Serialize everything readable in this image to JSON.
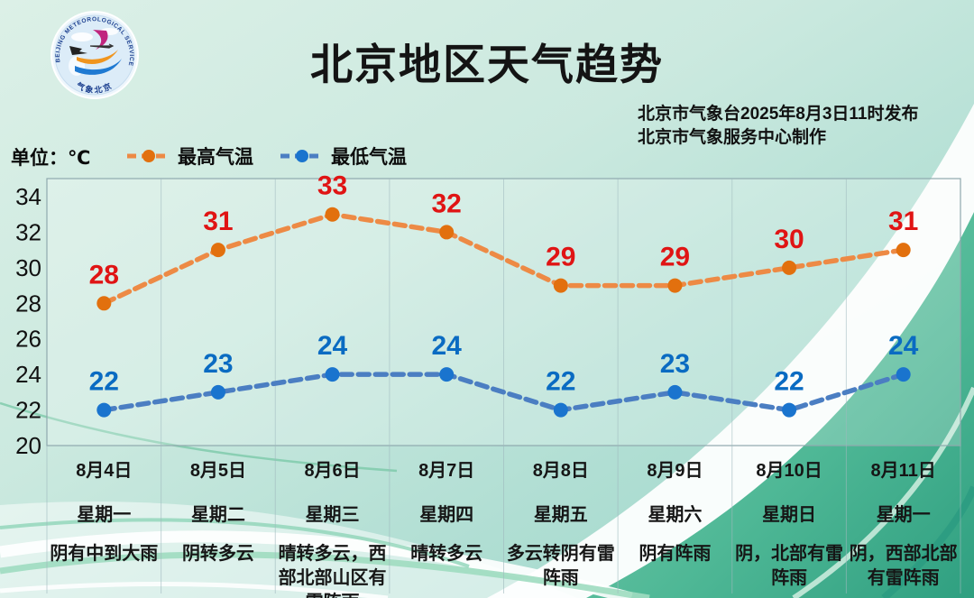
{
  "header": {
    "title": "北京地区天气趋势",
    "issued_line1": "北京市气象台2025年8月3日11时发布",
    "issued_line2": "北京市气象服务中心制作",
    "logo": {
      "ring_text": "BEIJING METEOROLOGICAL SERVICE",
      "bottom_text": "气象北京"
    }
  },
  "unit_label": "单位：℃",
  "chart_data": {
    "type": "line",
    "title": "北京地区天气趋势",
    "x": [
      "8月4日",
      "8月5日",
      "8月6日",
      "8月7日",
      "8月8日",
      "8月9日",
      "8月10日",
      "8月11日"
    ],
    "series": [
      {
        "id": "max-temp",
        "name": "最高气温",
        "values": [
          28,
          31,
          33,
          32,
          29,
          29,
          30,
          31
        ],
        "line_color": "#ED8A45",
        "marker_color": "#E2700E",
        "label_color": "#E01414",
        "style": "dashed"
      },
      {
        "id": "min-temp",
        "name": "最低气温",
        "values": [
          22,
          23,
          24,
          24,
          22,
          23,
          22,
          24
        ],
        "line_color": "#4B7EC2",
        "marker_color": "#1A74CE",
        "label_color": "#0A6BC2",
        "style": "dashed"
      }
    ],
    "ylim": [
      20,
      34
    ],
    "yticks": [
      20,
      22,
      24,
      26,
      28,
      30,
      32,
      34
    ],
    "ylabel": "℃",
    "xlabel": "",
    "grid": "vertical-only",
    "legend_position": "top-left"
  },
  "days": [
    {
      "date": "8月4日",
      "weekday": "星期一",
      "weather": "阴有中到大雨"
    },
    {
      "date": "8月5日",
      "weekday": "星期二",
      "weather": "阴转多云"
    },
    {
      "date": "8月6日",
      "weekday": "星期三",
      "weather": "晴转多云，西部北部山区有雷阵雨"
    },
    {
      "date": "8月7日",
      "weekday": "星期四",
      "weather": "晴转多云"
    },
    {
      "date": "8月8日",
      "weekday": "星期五",
      "weather": "多云转阴有雷阵雨"
    },
    {
      "date": "8月9日",
      "weekday": "星期六",
      "weather": "阴有阵雨"
    },
    {
      "date": "8月10日",
      "weekday": "星期日",
      "weather": "阴，北部有雷阵雨"
    },
    {
      "date": "8月11日",
      "weekday": "星期一",
      "weather": "阴，西部北部有雷阵雨"
    }
  ],
  "colors": {
    "text": "#1A1A1A",
    "axis_text": "#111111",
    "grid_line": "#9FB9BE",
    "plot_frame": "#8FA9AE",
    "bg_light": "#D9EFE7",
    "bg_aqua": "#A9DCD2",
    "bg_green_deep": "#35A585",
    "swoosh_white": "#FFFFFF"
  }
}
